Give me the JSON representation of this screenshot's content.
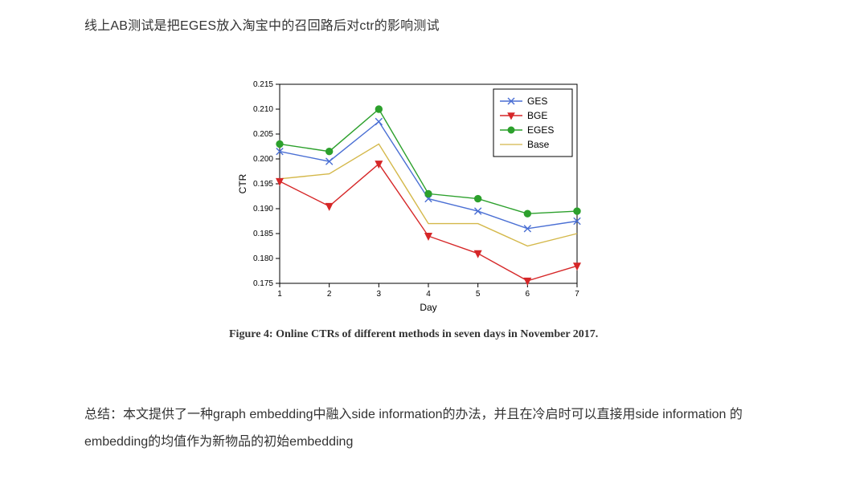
{
  "top_text": "线上AB测试是把EGES放入淘宝中的召回路后对ctr的影响测试",
  "caption": "Figure 4: Online CTRs of different methods in seven days in November 2017.",
  "summary": "总结：本文提供了一种graph embedding中融入side information的办法，并且在冷启时可以直接用side information 的embedding的均值作为新物品的初始embedding",
  "chart": {
    "type": "line",
    "xlabel": "Day",
    "ylabel": "CTR",
    "xlim": [
      1,
      7
    ],
    "ylim": [
      0.175,
      0.215
    ],
    "xticks": [
      1,
      2,
      3,
      4,
      5,
      6,
      7
    ],
    "yticks": [
      0.175,
      0.18,
      0.185,
      0.19,
      0.195,
      0.2,
      0.205,
      0.21,
      0.215
    ],
    "axis_color": "#000000",
    "tick_font_size": 10,
    "label_font_size": 12,
    "plot_bg": "#ffffff",
    "legend": {
      "border_color": "#000000",
      "bg": "#ffffff",
      "font_size": 12,
      "items": [
        {
          "label": "GES",
          "color": "#4a6fd4",
          "marker": "x",
          "line_width": 1.4
        },
        {
          "label": "BGE",
          "color": "#d62728",
          "marker": "triangle-down",
          "line_width": 1.4,
          "marker_fill": "#d62728"
        },
        {
          "label": "EGES",
          "color": "#2ca02c",
          "marker": "circle",
          "line_width": 1.4,
          "marker_fill": "#2ca02c"
        },
        {
          "label": "Base",
          "color": "#d4b84a",
          "marker": "none",
          "line_width": 1.2
        }
      ]
    },
    "series": {
      "GES": {
        "x": [
          1,
          2,
          3,
          4,
          5,
          6,
          7
        ],
        "y": [
          0.2015,
          0.1995,
          0.2075,
          0.192,
          0.1895,
          0.186,
          0.1875
        ],
        "color": "#4a6fd4",
        "marker": "x"
      },
      "BGE": {
        "x": [
          1,
          2,
          3,
          4,
          5,
          6,
          7
        ],
        "y": [
          0.1955,
          0.1905,
          0.199,
          0.1845,
          0.181,
          0.1755,
          0.1785
        ],
        "color": "#d62728",
        "marker": "triangle-down",
        "marker_fill": "#d62728"
      },
      "EGES": {
        "x": [
          1,
          2,
          3,
          4,
          5,
          6,
          7
        ],
        "y": [
          0.203,
          0.2015,
          0.21,
          0.193,
          0.192,
          0.189,
          0.1895
        ],
        "color": "#2ca02c",
        "marker": "circle",
        "marker_fill": "#2ca02c"
      },
      "Base": {
        "x": [
          1,
          2,
          3,
          4,
          5,
          6,
          7
        ],
        "y": [
          0.196,
          0.197,
          0.203,
          0.187,
          0.187,
          0.1825,
          0.185
        ],
        "color": "#d4b84a",
        "marker": "none"
      }
    }
  }
}
